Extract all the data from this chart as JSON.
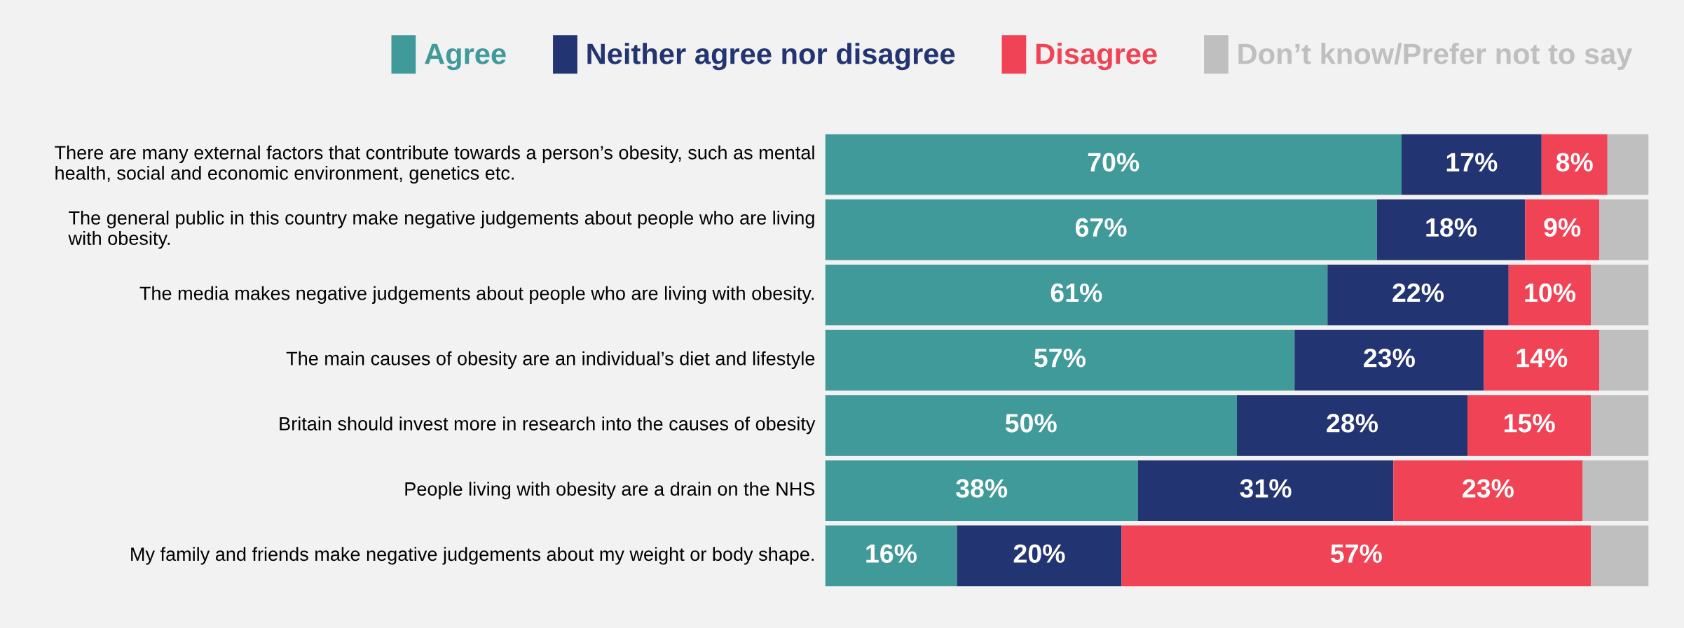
{
  "chart_data": {
    "type": "bar",
    "orientation": "horizontal",
    "stacked": true,
    "legend": "top",
    "tick_labels": "y",
    "xlim": [
      0,
      100
    ],
    "categories": [
      "There are many external factors that contribute towards a person’s obesity, such as mental health, social and economic environment, genetics etc.",
      "The general public in this country make negative judgements about people who are living with obesity.",
      "The media makes negative judgements about people who are living with obesity.",
      "The main causes of obesity are an individual’s diet and lifestyle",
      "Britain should invest more in research into the causes of obesity",
      "People living with obesity are a drain on the NHS",
      "My family and friends make negative judgements about my weight or body shape."
    ],
    "series": [
      {
        "name": "Agree",
        "color": "#419a9a",
        "values": [
          70,
          67,
          61,
          57,
          50,
          38,
          16
        ],
        "value_labels": [
          "70%",
          "67%",
          "61%",
          "57%",
          "50%",
          "38%",
          "16%"
        ]
      },
      {
        "name": "Neither agree nor disagree",
        "color": "#233472",
        "values": [
          17,
          18,
          22,
          23,
          28,
          31,
          20
        ],
        "value_labels": [
          "17%",
          "18%",
          "22%",
          "23%",
          "28%",
          "31%",
          "20%"
        ]
      },
      {
        "name": "Disagree",
        "color": "#f04355",
        "values": [
          8,
          9,
          10,
          14,
          15,
          23,
          57
        ],
        "value_labels": [
          "8%",
          "9%",
          "10%",
          "14%",
          "15%",
          "23%",
          "57%"
        ]
      },
      {
        "name": "Don’t know/Prefer not to say",
        "color": "#bfbfbf",
        "values": [
          5,
          6,
          7,
          6,
          7,
          8,
          7
        ],
        "value_labels": [
          null,
          null,
          null,
          null,
          null,
          null,
          null
        ]
      }
    ]
  }
}
